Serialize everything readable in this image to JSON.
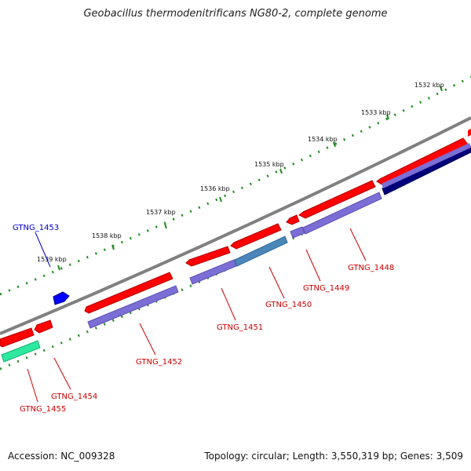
{
  "title": "Geobacillus thermodenitrificans NG80-2, complete genome",
  "footer": {
    "accession": "Accession: NC_009328",
    "info": "Topology: circular; Length: 3,550,319 bp; Genes: 3,509"
  },
  "ticks": [
    "1532 kbp",
    "1533 kbp",
    "1534 kbp",
    "1535 kbp",
    "1536 kbp",
    "1537 kbp",
    "1538 kbp",
    "1539 kbp"
  ],
  "genes": [
    {
      "name": "GTNG_1448",
      "color": "#cc0000"
    },
    {
      "name": "GTNG_1449",
      "color": "#cc0000"
    },
    {
      "name": "GTNG_1450",
      "color": "#cc0000"
    },
    {
      "name": "GTNG_1451",
      "color": "#cc0000"
    },
    {
      "name": "GTNG_1452",
      "color": "#cc0000"
    },
    {
      "name": "GTNG_1453",
      "color": "#0000cc"
    },
    {
      "name": "GTNG_1454",
      "color": "#cc0000"
    },
    {
      "name": "GTNG_1455",
      "color": "#cc0000"
    }
  ],
  "colors": {
    "backbone": "#808080",
    "cds_forward": "#ff0000",
    "cds_blue": "#0000ff",
    "feature_purple": "#7b6fd6",
    "feature_steel": "#4a86b8",
    "feature_navy": "#00007a",
    "feature_green": "#2ee8a0",
    "tick_dots": "#228b22"
  }
}
